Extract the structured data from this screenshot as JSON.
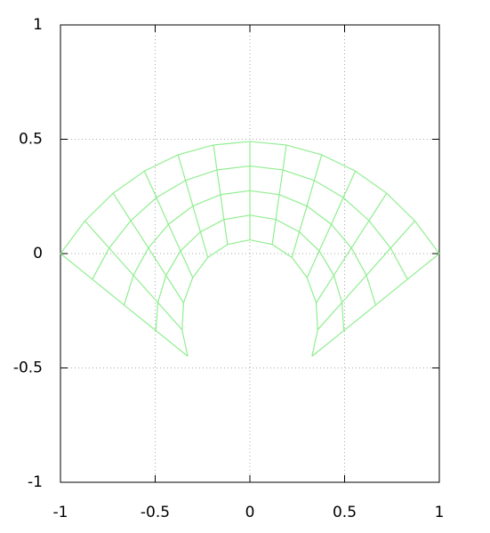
{
  "chart_data": {
    "type": "mesh",
    "color": "#90ee90",
    "xlim": [
      -1,
      1
    ],
    "ylim": [
      -1,
      1
    ],
    "xticks": [
      -1,
      -0.5,
      0,
      0.5,
      1
    ],
    "yticks": [
      -1,
      -0.5,
      0,
      0.5,
      1
    ],
    "grid": true,
    "x": [
      [
        -0.328,
        -0.358,
        -0.35,
        -0.302,
        -0.222,
        -0.118,
        0,
        0.118,
        0.222,
        0.302,
        0.35,
        0.358,
        0.328
      ],
      [
        -0.496,
        -0.486,
        -0.443,
        -0.366,
        -0.261,
        -0.137,
        0,
        0.137,
        0.261,
        0.366,
        0.443,
        0.486,
        0.496
      ],
      [
        -0.664,
        -0.615,
        -0.536,
        -0.43,
        -0.301,
        -0.155,
        0,
        0.155,
        0.301,
        0.43,
        0.536,
        0.615,
        0.664
      ],
      [
        -0.832,
        -0.743,
        -0.629,
        -0.493,
        -0.34,
        -0.174,
        0,
        0.174,
        0.34,
        0.493,
        0.629,
        0.743,
        0.832
      ],
      [
        -1,
        -0.871,
        -0.722,
        -0.557,
        -0.379,
        -0.192,
        0,
        0.192,
        0.379,
        0.557,
        0.722,
        0.871,
        1
      ]
    ],
    "y": [
      [
        -0.449,
        -0.333,
        -0.215,
        -0.105,
        -0.017,
        0.04,
        0.06,
        0.04,
        -0.017,
        -0.105,
        -0.215,
        -0.333,
        -0.449
      ],
      [
        -0.337,
        -0.214,
        -0.095,
        0.012,
        0.095,
        0.149,
        0.168,
        0.149,
        0.095,
        0.012,
        -0.095,
        -0.214,
        -0.337
      ],
      [
        -0.225,
        -0.095,
        0.025,
        0.128,
        0.208,
        0.258,
        0.275,
        0.258,
        0.208,
        0.128,
        0.025,
        -0.095,
        -0.225
      ],
      [
        -0.112,
        0.024,
        0.144,
        0.245,
        0.32,
        0.366,
        0.383,
        0.366,
        0.32,
        0.245,
        0.144,
        0.024,
        -0.112
      ],
      [
        0,
        0.143,
        0.264,
        0.361,
        0.432,
        0.475,
        0.49,
        0.475,
        0.432,
        0.361,
        0.264,
        0.143,
        0
      ]
    ]
  }
}
